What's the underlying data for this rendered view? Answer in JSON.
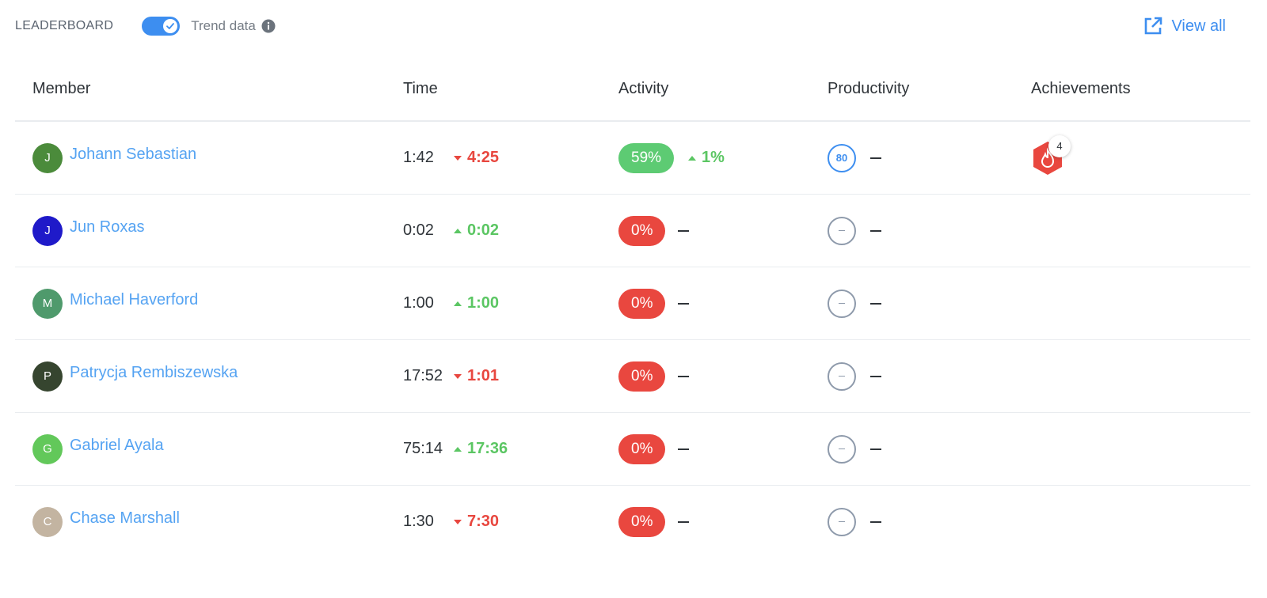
{
  "header": {
    "title": "LEADERBOARD",
    "trend_toggle_label": "Trend data",
    "trend_toggle_on": true,
    "view_all_label": "View all"
  },
  "columns": {
    "member": "Member",
    "time": "Time",
    "activity": "Activity",
    "productivity": "Productivity",
    "achievements": "Achievements"
  },
  "colors": {
    "accent": "#3d8ef0",
    "link": "#55a3f2",
    "positive": "#5bc663",
    "negative": "#e8473f"
  },
  "rows": [
    {
      "initial": "J",
      "name": "Johann Sebastian",
      "avatar_color": "#4b8b3b",
      "time": "1:42",
      "time_trend": "4:25",
      "time_trend_dir": "down",
      "activity": "59%",
      "activity_color": "green",
      "activity_trend": "1%",
      "activity_trend_dir": "up",
      "productivity": "80",
      "productivity_trend": "–",
      "achievement_count": "4"
    },
    {
      "initial": "J",
      "name": "Jun Roxas",
      "avatar_color": "#1f1ac9",
      "time": "0:02",
      "time_trend": "0:02",
      "time_trend_dir": "up",
      "activity": "0%",
      "activity_color": "red",
      "activity_trend": "–",
      "productivity": "–",
      "productivity_trend": "–",
      "achievement_count": ""
    },
    {
      "initial": "M",
      "name": "Michael Haverford",
      "avatar_color": "#4f9a6c",
      "time": "1:00",
      "time_trend": "1:00",
      "time_trend_dir": "up",
      "activity": "0%",
      "activity_color": "red",
      "activity_trend": "–",
      "productivity": "–",
      "productivity_trend": "–",
      "achievement_count": ""
    },
    {
      "initial": "P",
      "name": "Patrycja Rembiszewska",
      "avatar_color": "#36452f",
      "time": "17:52",
      "time_trend": "1:01",
      "time_trend_dir": "down",
      "activity": "0%",
      "activity_color": "red",
      "activity_trend": "–",
      "productivity": "–",
      "productivity_trend": "–",
      "achievement_count": ""
    },
    {
      "initial": "G",
      "name": "Gabriel Ayala",
      "avatar_color": "#62c85a",
      "time": "75:14",
      "time_trend": "17:36",
      "time_trend_dir": "up",
      "activity": "0%",
      "activity_color": "red",
      "activity_trend": "–",
      "productivity": "–",
      "productivity_trend": "–",
      "achievement_count": ""
    },
    {
      "initial": "C",
      "name": "Chase Marshall",
      "avatar_color": "#c3b4a1",
      "time": "1:30",
      "time_trend": "7:30",
      "time_trend_dir": "down",
      "activity": "0%",
      "activity_color": "red",
      "activity_trend": "–",
      "productivity": "–",
      "productivity_trend": "–",
      "achievement_count": ""
    }
  ]
}
